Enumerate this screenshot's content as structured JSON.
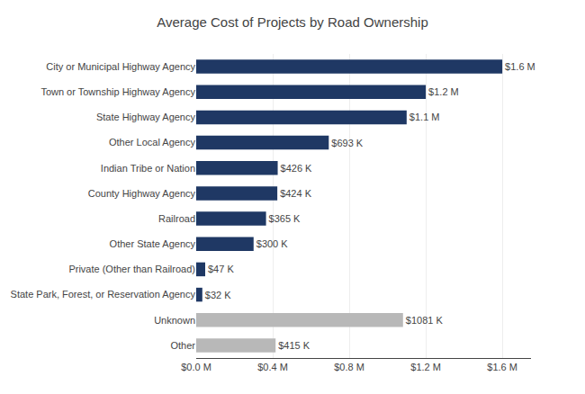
{
  "chart_data": {
    "type": "bar",
    "orientation": "horizontal",
    "title": "Average Cost of Projects by Road Ownership",
    "categories": [
      "City or Municipal Highway Agency",
      "Town or Township Highway Agency",
      "State Highway Agency",
      "Other Local Agency",
      "Indian Tribe or Nation",
      "County Highway Agency",
      "Railroad",
      "Other State Agency",
      "Private (Other than Railroad)",
      "State Park, Forest, or Reservation Agency",
      "Unknown",
      "Other"
    ],
    "values": [
      1600000,
      1200000,
      1100000,
      693000,
      426000,
      424000,
      365000,
      300000,
      47000,
      32000,
      1081000,
      415000
    ],
    "value_labels": [
      "$1.6 M",
      "$1.2 M",
      "$1.1 M",
      "$693 K",
      "$426 K",
      "$424 K",
      "$365 K",
      "$300 K",
      "$47 K",
      "$32 K",
      "$1081 K",
      "$415 K"
    ],
    "data_labels": true,
    "colors": [
      "#1f3864",
      "#1f3864",
      "#1f3864",
      "#1f3864",
      "#1f3864",
      "#1f3864",
      "#1f3864",
      "#1f3864",
      "#1f3864",
      "#1f3864",
      "#b8b8b8",
      "#b8b8b8"
    ],
    "xlim": [
      0,
      1750000
    ],
    "xticks": [
      {
        "value": 0,
        "label": "$0.0 M"
      },
      {
        "value": 400000,
        "label": "$0.4 M"
      },
      {
        "value": 800000,
        "label": "$0.8 M"
      },
      {
        "value": 1200000,
        "label": "$1.2 M"
      },
      {
        "value": 1600000,
        "label": "$1.6 M"
      }
    ],
    "grid": true
  }
}
